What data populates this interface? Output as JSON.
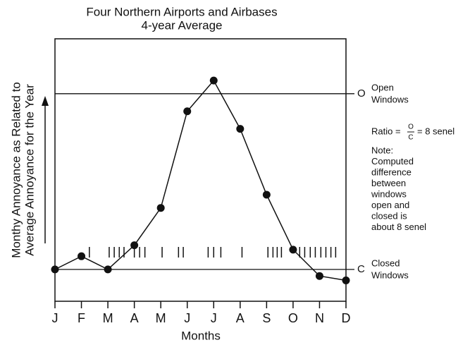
{
  "chart_data": {
    "type": "line",
    "title": [
      "Four Northern Airports and Airbases",
      "4-year Average"
    ],
    "y_label": [
      "Monthy Annoyance as Related to",
      "Average Annoyance for the Year"
    ],
    "x_label": "Months",
    "categories": [
      "J",
      "F",
      "M",
      "A",
      "M",
      "J",
      "J",
      "A",
      "S",
      "O",
      "N",
      "D"
    ],
    "values": [
      0,
      0.6,
      0,
      1.1,
      2.8,
      7.2,
      8.6,
      6.4,
      3.4,
      0.9,
      -0.3,
      -0.5
    ],
    "color": "#111111",
    "ylim": [
      -1.45,
      10.5
    ],
    "reference_lines": [
      {
        "value": 8,
        "label": "O",
        "note": [
          "Open",
          "Windows"
        ]
      },
      {
        "value": 0,
        "label": "C",
        "note": [
          "Closed",
          "Windows"
        ]
      }
    ],
    "rug_x": [
      1.3,
      2.05,
      2.24,
      2.43,
      2.61,
      3.0,
      3.2,
      3.4,
      4.05,
      4.67,
      4.85,
      5.79,
      6.0,
      6.27,
      7.07,
      8.05,
      8.24,
      8.4,
      8.56,
      9.25,
      9.44,
      9.65,
      9.84,
      10.05,
      10.24,
      10.43,
      10.61
    ],
    "ratio": {
      "prefix": "Ratio =",
      "numerator": "O",
      "denominator": "C",
      "suffix": "= 8 senel"
    },
    "note": [
      "Note:",
      "Computed",
      "difference",
      "between",
      "windows",
      "open and",
      "closed is",
      "about 8 senel"
    ]
  }
}
